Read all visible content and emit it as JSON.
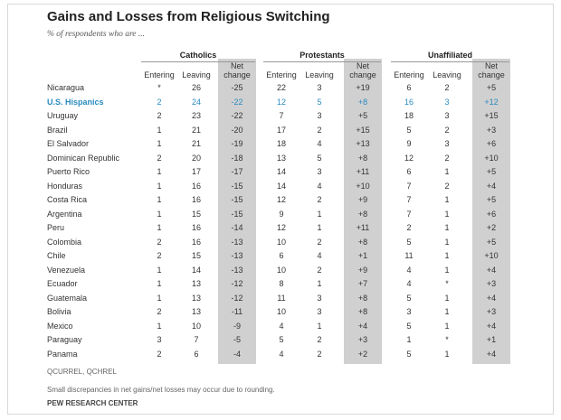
{
  "title": "Gains and Losses from Religious Switching",
  "subtitle": "% of respondents who are ...",
  "groups": [
    {
      "label": "Catholics",
      "columns": [
        "Entering",
        "Leaving",
        "Net change"
      ]
    },
    {
      "label": "Protestants",
      "columns": [
        "Entering",
        "Leaving",
        "Net change"
      ]
    },
    {
      "label": "Unaffiliated",
      "columns": [
        "Entering",
        "Leaving",
        "Net change"
      ]
    }
  ],
  "chart_data": {
    "type": "table",
    "title": "Gains and Losses from Religious Switching",
    "subtitle": "% of respondents who are ...",
    "columns": [
      "Catholics Entering",
      "Catholics Leaving",
      "Catholics Net change",
      "Protestants Entering",
      "Protestants Leaving",
      "Protestants Net change",
      "Unaffiliated Entering",
      "Unaffiliated Leaving",
      "Unaffiliated Net change"
    ],
    "rows": [
      {
        "country": "Nicaragua",
        "values": [
          "*",
          "26",
          "-25",
          "22",
          "3",
          "+19",
          "6",
          "2",
          "+5"
        ]
      },
      {
        "country": "U.S. Hispanics",
        "highlight": true,
        "values": [
          "2",
          "24",
          "-22",
          "12",
          "5",
          "+8",
          "16",
          "3",
          "+12"
        ]
      },
      {
        "country": "Uruguay",
        "values": [
          "2",
          "23",
          "-22",
          "7",
          "3",
          "+5",
          "18",
          "3",
          "+15"
        ]
      },
      {
        "country": "Brazil",
        "values": [
          "1",
          "21",
          "-20",
          "17",
          "2",
          "+15",
          "5",
          "2",
          "+3"
        ]
      },
      {
        "country": "El Salvador",
        "values": [
          "1",
          "21",
          "-19",
          "18",
          "4",
          "+13",
          "9",
          "3",
          "+6"
        ]
      },
      {
        "country": "Dominican Republic",
        "values": [
          "2",
          "20",
          "-18",
          "13",
          "5",
          "+8",
          "12",
          "2",
          "+10"
        ]
      },
      {
        "country": "Puerto Rico",
        "values": [
          "1",
          "17",
          "-17",
          "14",
          "3",
          "+11",
          "6",
          "1",
          "+5"
        ]
      },
      {
        "country": "Honduras",
        "values": [
          "1",
          "16",
          "-15",
          "14",
          "4",
          "+10",
          "7",
          "2",
          "+4"
        ]
      },
      {
        "country": "Costa Rica",
        "values": [
          "1",
          "16",
          "-15",
          "12",
          "2",
          "+9",
          "7",
          "1",
          "+5"
        ]
      },
      {
        "country": "Argentina",
        "values": [
          "1",
          "15",
          "-15",
          "9",
          "1",
          "+8",
          "7",
          "1",
          "+6"
        ]
      },
      {
        "country": "Peru",
        "values": [
          "1",
          "16",
          "-14",
          "12",
          "1",
          "+11",
          "2",
          "1",
          "+2"
        ]
      },
      {
        "country": "Colombia",
        "values": [
          "2",
          "16",
          "-13",
          "10",
          "2",
          "+8",
          "5",
          "1",
          "+5"
        ]
      },
      {
        "country": "Chile",
        "values": [
          "2",
          "15",
          "-13",
          "6",
          "4",
          "+1",
          "11",
          "1",
          "+10"
        ]
      },
      {
        "country": "Venezuela",
        "values": [
          "1",
          "14",
          "-13",
          "10",
          "2",
          "+9",
          "4",
          "1",
          "+4"
        ]
      },
      {
        "country": "Ecuador",
        "values": [
          "1",
          "13",
          "-12",
          "8",
          "1",
          "+7",
          "4",
          "*",
          "+3"
        ]
      },
      {
        "country": "Guatemala",
        "values": [
          "1",
          "13",
          "-12",
          "11",
          "3",
          "+8",
          "5",
          "1",
          "+4"
        ]
      },
      {
        "country": "Bolivia",
        "values": [
          "2",
          "13",
          "-11",
          "10",
          "3",
          "+8",
          "3",
          "1",
          "+3"
        ]
      },
      {
        "country": "Mexico",
        "values": [
          "1",
          "10",
          "-9",
          "4",
          "1",
          "+4",
          "5",
          "1",
          "+4"
        ]
      },
      {
        "country": "Paraguay",
        "values": [
          "3",
          "7",
          "-5",
          "5",
          "2",
          "+3",
          "1",
          "*",
          "+1"
        ]
      },
      {
        "country": "Panama",
        "values": [
          "2",
          "6",
          "-4",
          "4",
          "2",
          "+2",
          "5",
          "1",
          "+4"
        ]
      }
    ]
  },
  "notes": {
    "questions": "QCURREL, QCHREL",
    "rounding": "Small discrepancies in net gains/net losses may occur due to rounding.",
    "source": "PEW RESEARCH CENTER"
  },
  "colors": {
    "shade": "#d0d0d0",
    "highlight": "#2b8bc0"
  }
}
